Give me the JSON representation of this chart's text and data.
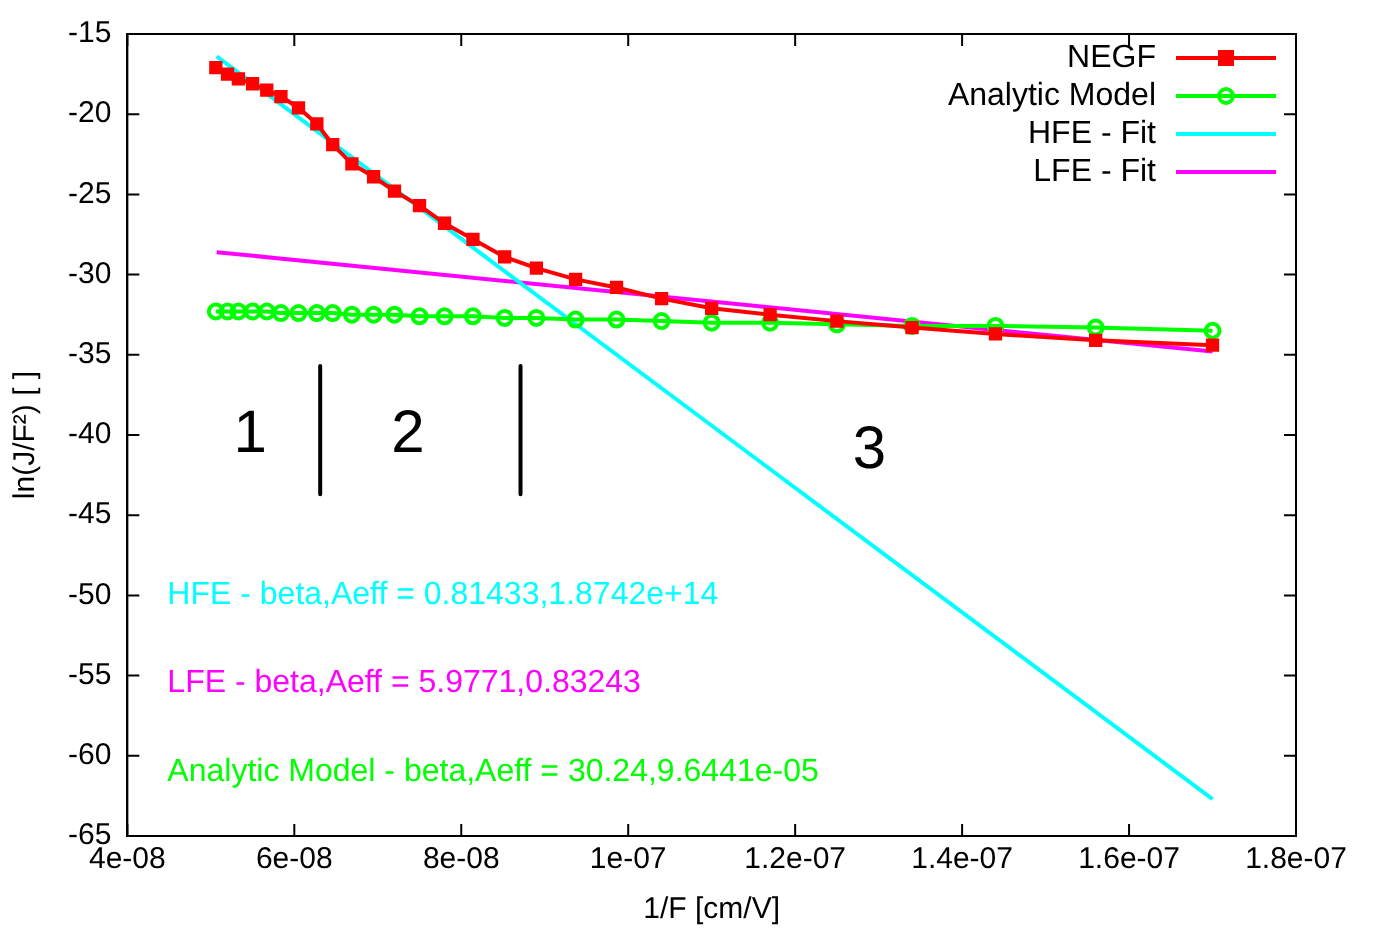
{
  "chart_data": {
    "type": "line",
    "xlabel": "1/F [cm/V]",
    "ylabel": "ln(J/F²) [ ]",
    "x": [
      5.06e-08,
      5.2e-08,
      5.33e-08,
      5.5e-08,
      5.67e-08,
      5.84e-08,
      6.05e-08,
      6.27e-08,
      6.46e-08,
      6.69e-08,
      6.95e-08,
      7.2e-08,
      7.5e-08,
      7.8e-08,
      8.14e-08,
      8.52e-08,
      8.9e-08,
      9.37e-08,
      9.86e-08,
      1.04e-07,
      1.1e-07,
      1.17e-07,
      1.25e-07,
      1.34e-07,
      1.44e-07,
      1.56e-07,
      1.7e-07
    ],
    "series": [
      {
        "name": "NEGF",
        "color": "#ff0000",
        "marker": "square",
        "values": [
          -17.1,
          -17.5,
          -17.8,
          -18.1,
          -18.5,
          -18.9,
          -19.6,
          -20.6,
          -21.9,
          -23.1,
          -23.9,
          -24.8,
          -25.7,
          -26.8,
          -27.8,
          -28.9,
          -29.6,
          -30.3,
          -30.8,
          -31.5,
          -32.1,
          -32.5,
          -32.9,
          -33.3,
          -33.7,
          -34.1,
          -34.4
        ]
      },
      {
        "name": "Analytic Model",
        "color": "#00ff00",
        "marker": "circle",
        "values": [
          -32.3,
          -32.3,
          -32.3,
          -32.3,
          -32.3,
          -32.4,
          -32.4,
          -32.4,
          -32.4,
          -32.5,
          -32.5,
          -32.5,
          -32.6,
          -32.6,
          -32.6,
          -32.7,
          -32.7,
          -32.8,
          -32.8,
          -32.9,
          -33.0,
          -33.0,
          -33.1,
          -33.2,
          -33.2,
          -33.3,
          -33.5
        ]
      },
      {
        "name": "HFE - Fit",
        "color": "#00ffff",
        "marker": "none",
        "x": [
          5.07e-08,
          1.7e-07
        ],
        "values": [
          -16.4,
          -62.7
        ]
      },
      {
        "name": "LFE - Fit",
        "color": "#ff00ff",
        "marker": "none",
        "x": [
          5.07e-08,
          1.7e-07
        ],
        "values": [
          -28.6,
          -34.8
        ]
      },
      {
        "color": "#000000",
        "marker": "none",
        "x": [
          6.31e-08,
          6.31e-08
        ],
        "values": [
          -35.7,
          -43.7
        ]
      },
      {
        "color": "#000000",
        "marker": "none",
        "x": [
          8.71e-08,
          8.71e-08
        ],
        "values": [
          -35.7,
          -43.7
        ]
      }
    ],
    "annotations": [
      "1",
      "2",
      "3",
      "HFE - beta,Aeff = 0.81433,1.8742e+14",
      "LFE - beta,Aeff = 5.9771,0.83243",
      "Analytic Model - beta,Aeff = 30.24,9.6441e-05"
    ],
    "xlim": [
      4e-08,
      1.8e-07
    ],
    "xticks": [
      {
        "value": 4e-08,
        "label": "4e-08"
      },
      {
        "value": 6e-08,
        "label": "6e-08"
      },
      {
        "value": 8e-08,
        "label": "8e-08"
      },
      {
        "value": 1e-07,
        "label": "1e-07"
      },
      {
        "value": 1.2e-07,
        "label": "1.2e-07"
      },
      {
        "value": 1.4e-07,
        "label": "1.4e-07"
      },
      {
        "value": 1.6e-07,
        "label": "1.6e-07"
      },
      {
        "value": 1.8e-07,
        "label": "1.8e-07"
      }
    ],
    "ylim": [
      -65,
      -15
    ],
    "yticks": [
      -65,
      -60,
      -55,
      -50,
      -45,
      -40,
      -35,
      -30,
      -25,
      -20,
      -15
    ],
    "grid": false,
    "legend": "top right"
  }
}
